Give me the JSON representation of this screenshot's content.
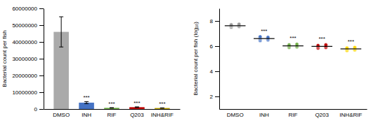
{
  "chart_data": [
    {
      "type": "bar",
      "categories": [
        "DMSO",
        "INH",
        "RIF",
        "Q203",
        "INH&RIF"
      ],
      "values": [
        46000000,
        3800000,
        700000,
        1100000,
        600000
      ],
      "errors": [
        9000000,
        600000,
        120000,
        180000,
        100000
      ],
      "colors": [
        "#aaaaaa",
        "#4472c4",
        "#70ad47",
        "#c00000",
        "#b8a000"
      ],
      "ylabel": "Bacterial count per fish",
      "ylim": [
        0,
        60000000
      ],
      "yticks": [
        0,
        10000000,
        20000000,
        30000000,
        40000000,
        50000000,
        60000000
      ],
      "annotations": [
        null,
        "***",
        "***",
        "***",
        "***"
      ]
    },
    {
      "type": "dot",
      "categories": [
        "DMSO",
        "INH",
        "RIF",
        "Q203",
        "INH&RIF"
      ],
      "values": [
        [
          7.5,
          7.55,
          7.6,
          7.65,
          7.7,
          7.75
        ],
        [
          6.45,
          6.5,
          6.55,
          6.6,
          6.65,
          6.7,
          6.75
        ],
        [
          5.9,
          5.95,
          6.0,
          6.05,
          6.1,
          6.15
        ],
        [
          5.85,
          5.9,
          5.95,
          6.0,
          6.05,
          6.1
        ],
        [
          5.65,
          5.7,
          5.75,
          5.8,
          5.85,
          5.9
        ]
      ],
      "means": [
        7.62,
        6.6,
        6.02,
        5.98,
        5.78
      ],
      "colors": [
        "#999999",
        "#4472c4",
        "#70ad47",
        "#c00000",
        "#ffd700"
      ],
      "ylabel": "Bacterial count per fish (log₁₀)",
      "ylim": [
        1,
        9
      ],
      "yticks": [
        2,
        4,
        6,
        8
      ],
      "annotations": [
        null,
        "***",
        "***",
        "***",
        "***"
      ]
    }
  ]
}
